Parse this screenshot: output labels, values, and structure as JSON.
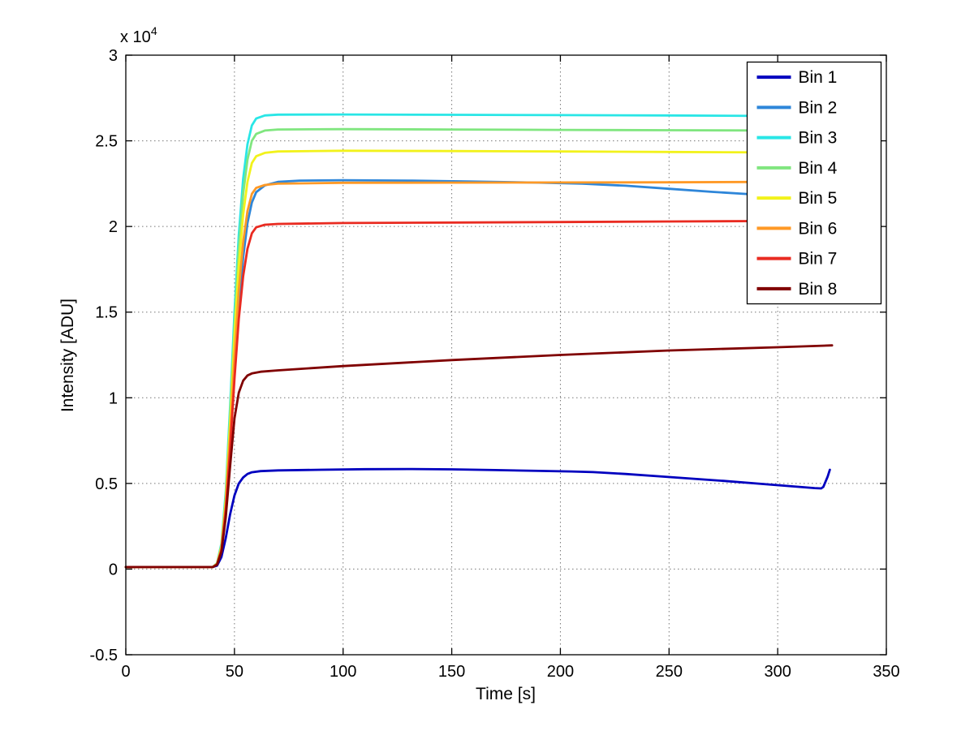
{
  "figure": {
    "background": "#ffffff",
    "axes_box_color": "#000000",
    "grid_color": "#777777"
  },
  "chart_data": {
    "type": "line",
    "title": "",
    "xlabel": "Time [s]",
    "ylabel": "Intensity [ADU]",
    "y_multiplier": {
      "base": "x 10",
      "exp": "4"
    },
    "xlim": [
      0,
      350
    ],
    "ylim": [
      -5000,
      30000
    ],
    "xticks": [
      0,
      50,
      100,
      150,
      200,
      250,
      300,
      350
    ],
    "xtick_labels": [
      "0",
      "50",
      "100",
      "150",
      "200",
      "250",
      "300",
      "350"
    ],
    "ytick_values": [
      -5000,
      0,
      5000,
      10000,
      15000,
      20000,
      25000,
      30000
    ],
    "ytick_labels": [
      "-0.5",
      "0",
      "0.5",
      "1",
      "1.5",
      "2",
      "2.5",
      "3"
    ],
    "grid": true,
    "legend_position": "top-right",
    "series": [
      {
        "name": "Bin 1",
        "color": "#0000BF",
        "points": [
          [
            0,
            120
          ],
          [
            40,
            120
          ],
          [
            42,
            200
          ],
          [
            44,
            700
          ],
          [
            46,
            1800
          ],
          [
            48,
            3200
          ],
          [
            50,
            4300
          ],
          [
            52,
            5000
          ],
          [
            54,
            5350
          ],
          [
            56,
            5550
          ],
          [
            58,
            5650
          ],
          [
            62,
            5720
          ],
          [
            70,
            5760
          ],
          [
            90,
            5800
          ],
          [
            110,
            5830
          ],
          [
            130,
            5840
          ],
          [
            150,
            5820
          ],
          [
            170,
            5780
          ],
          [
            190,
            5730
          ],
          [
            205,
            5700
          ],
          [
            215,
            5660
          ],
          [
            230,
            5550
          ],
          [
            245,
            5420
          ],
          [
            260,
            5280
          ],
          [
            275,
            5150
          ],
          [
            290,
            5000
          ],
          [
            300,
            4900
          ],
          [
            310,
            4800
          ],
          [
            317,
            4730
          ],
          [
            320,
            4710
          ],
          [
            321,
            4800
          ],
          [
            323,
            5400
          ],
          [
            324,
            5800
          ]
        ]
      },
      {
        "name": "Bin 2",
        "color": "#2E86D9",
        "points": [
          [
            0,
            120
          ],
          [
            40,
            120
          ],
          [
            42,
            300
          ],
          [
            44,
            1200
          ],
          [
            46,
            3500
          ],
          [
            48,
            7200
          ],
          [
            50,
            11500
          ],
          [
            52,
            15300
          ],
          [
            54,
            18200
          ],
          [
            56,
            20200
          ],
          [
            58,
            21400
          ],
          [
            60,
            22000
          ],
          [
            64,
            22400
          ],
          [
            70,
            22600
          ],
          [
            80,
            22680
          ],
          [
            100,
            22700
          ],
          [
            130,
            22680
          ],
          [
            160,
            22620
          ],
          [
            190,
            22560
          ],
          [
            210,
            22500
          ],
          [
            230,
            22380
          ],
          [
            250,
            22200
          ],
          [
            270,
            22020
          ],
          [
            285,
            21900
          ],
          [
            295,
            21830
          ],
          [
            305,
            21780
          ]
        ]
      },
      {
        "name": "Bin 3",
        "color": "#29E6E6",
        "points": [
          [
            0,
            120
          ],
          [
            40,
            120
          ],
          [
            42,
            350
          ],
          [
            44,
            1500
          ],
          [
            46,
            4500
          ],
          [
            48,
            9500
          ],
          [
            50,
            15000
          ],
          [
            52,
            19500
          ],
          [
            54,
            22800
          ],
          [
            56,
            24800
          ],
          [
            58,
            25900
          ],
          [
            60,
            26300
          ],
          [
            64,
            26480
          ],
          [
            70,
            26530
          ],
          [
            100,
            26540
          ],
          [
            150,
            26520
          ],
          [
            200,
            26500
          ],
          [
            250,
            26480
          ],
          [
            300,
            26450
          ],
          [
            322,
            26440
          ]
        ]
      },
      {
        "name": "Bin 4",
        "color": "#80E67F",
        "points": [
          [
            0,
            120
          ],
          [
            40,
            120
          ],
          [
            42,
            330
          ],
          [
            44,
            1400
          ],
          [
            46,
            4200
          ],
          [
            48,
            9000
          ],
          [
            50,
            14300
          ],
          [
            52,
            18700
          ],
          [
            54,
            21900
          ],
          [
            56,
            23900
          ],
          [
            58,
            25000
          ],
          [
            60,
            25400
          ],
          [
            64,
            25600
          ],
          [
            70,
            25660
          ],
          [
            100,
            25680
          ],
          [
            150,
            25660
          ],
          [
            200,
            25640
          ],
          [
            250,
            25620
          ],
          [
            300,
            25600
          ],
          [
            322,
            25590
          ]
        ]
      },
      {
        "name": "Bin 5",
        "color": "#F2F21B",
        "points": [
          [
            0,
            120
          ],
          [
            40,
            120
          ],
          [
            42,
            320
          ],
          [
            44,
            1300
          ],
          [
            46,
            4000
          ],
          [
            48,
            8500
          ],
          [
            50,
            13500
          ],
          [
            52,
            17700
          ],
          [
            54,
            20700
          ],
          [
            56,
            22600
          ],
          [
            58,
            23700
          ],
          [
            60,
            24100
          ],
          [
            64,
            24300
          ],
          [
            70,
            24380
          ],
          [
            100,
            24420
          ],
          [
            150,
            24400
          ],
          [
            200,
            24380
          ],
          [
            250,
            24350
          ],
          [
            300,
            24320
          ],
          [
            322,
            24310
          ]
        ]
      },
      {
        "name": "Bin 6",
        "color": "#FF9926",
        "points": [
          [
            0,
            120
          ],
          [
            40,
            120
          ],
          [
            42,
            300
          ],
          [
            44,
            1200
          ],
          [
            46,
            3700
          ],
          [
            48,
            7800
          ],
          [
            50,
            12400
          ],
          [
            52,
            16300
          ],
          [
            54,
            19100
          ],
          [
            56,
            20900
          ],
          [
            58,
            21900
          ],
          [
            60,
            22250
          ],
          [
            64,
            22420
          ],
          [
            70,
            22500
          ],
          [
            100,
            22550
          ],
          [
            150,
            22560
          ],
          [
            200,
            22570
          ],
          [
            250,
            22580
          ],
          [
            300,
            22600
          ],
          [
            325,
            22610
          ]
        ]
      },
      {
        "name": "Bin 7",
        "color": "#E92B21",
        "points": [
          [
            0,
            120
          ],
          [
            40,
            120
          ],
          [
            42,
            280
          ],
          [
            44,
            1100
          ],
          [
            46,
            3400
          ],
          [
            48,
            7000
          ],
          [
            50,
            11100
          ],
          [
            52,
            14600
          ],
          [
            54,
            17100
          ],
          [
            56,
            18700
          ],
          [
            58,
            19600
          ],
          [
            60,
            19950
          ],
          [
            64,
            20100
          ],
          [
            70,
            20150
          ],
          [
            100,
            20200
          ],
          [
            150,
            20230
          ],
          [
            200,
            20260
          ],
          [
            250,
            20290
          ],
          [
            300,
            20320
          ],
          [
            322,
            20350
          ]
        ]
      },
      {
        "name": "Bin 8",
        "color": "#800000",
        "points": [
          [
            0,
            120
          ],
          [
            40,
            120
          ],
          [
            42,
            250
          ],
          [
            44,
            1000
          ],
          [
            46,
            3000
          ],
          [
            48,
            6000
          ],
          [
            50,
            8800
          ],
          [
            52,
            10300
          ],
          [
            54,
            11000
          ],
          [
            56,
            11300
          ],
          [
            58,
            11420
          ],
          [
            62,
            11520
          ],
          [
            70,
            11600
          ],
          [
            100,
            11850
          ],
          [
            150,
            12200
          ],
          [
            200,
            12500
          ],
          [
            250,
            12760
          ],
          [
            300,
            12950
          ],
          [
            325,
            13060
          ]
        ]
      }
    ],
    "legend": {
      "entries": [
        "Bin 1",
        "Bin 2",
        "Bin 3",
        "Bin 4",
        "Bin 5",
        "Bin 6",
        "Bin 7",
        "Bin 8"
      ]
    }
  }
}
